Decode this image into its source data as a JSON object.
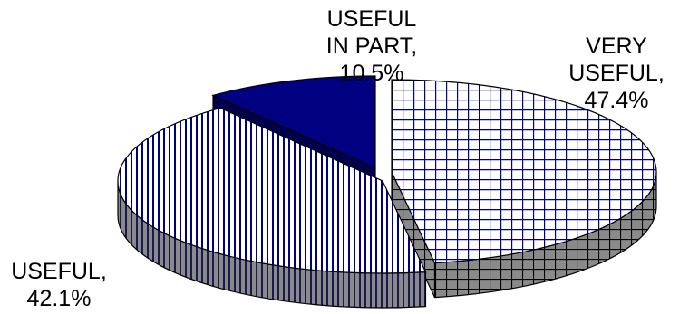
{
  "chart_data": {
    "type": "pie",
    "three_d": true,
    "title": "",
    "exploded": true,
    "slices": [
      {
        "label_lines": [
          "VERY",
          "USEFUL,"
        ],
        "pct_text": "47.4%",
        "value": 47.4,
        "pattern": "grid",
        "color": "#000080",
        "fill": "#ffffff"
      },
      {
        "label_lines": [
          "USEFUL,"
        ],
        "pct_text": "42.1%",
        "value": 42.1,
        "pattern": "vertical-stripes",
        "color": "#000080",
        "fill": "#ffffff"
      },
      {
        "label_lines": [
          "USEFUL",
          "IN PART,"
        ],
        "pct_text": "10.5%",
        "value": 10.5,
        "pattern": "solid",
        "color": "#000080",
        "fill": "#000080"
      }
    ],
    "side_color": "#808080",
    "outline_color": "#000000"
  }
}
